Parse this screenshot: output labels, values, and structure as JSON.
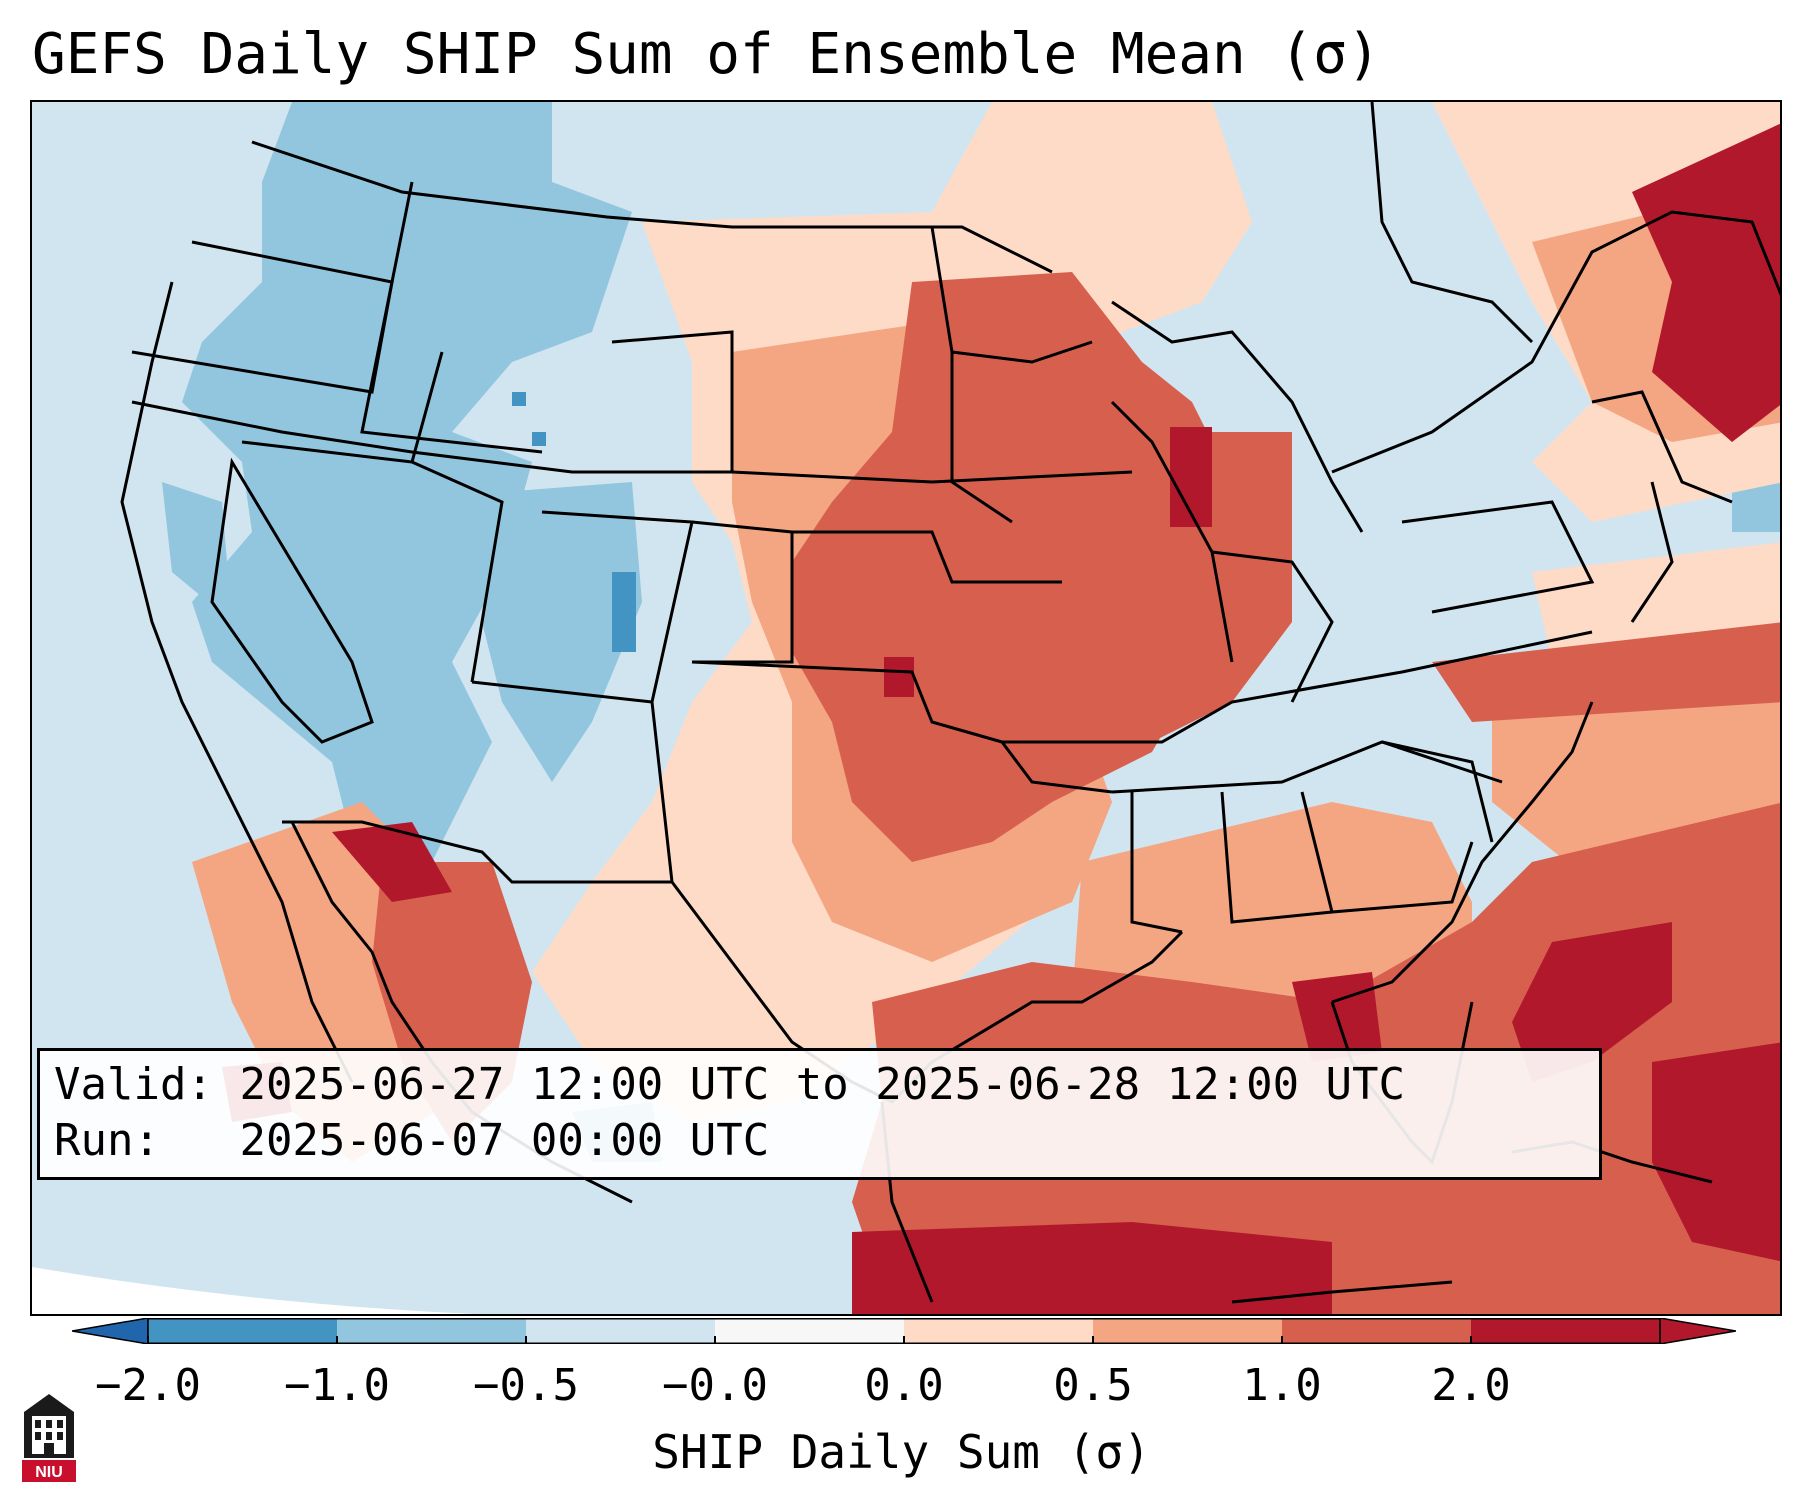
{
  "title": "GEFS Daily SHIP Sum of Ensemble Mean (σ)",
  "info": {
    "valid_label": "Valid:",
    "valid_value": "2025-06-27 12:00 UTC to 2025-06-28 12:00 UTC",
    "run_label": "Run:",
    "run_value": "2025-06-07 00:00 UTC"
  },
  "colorbar": {
    "label": "SHIP Daily Sum (σ)",
    "ticks": [
      "−2.0",
      "−1.0",
      "−0.5",
      "−0.0",
      "0.0",
      "0.5",
      "1.0",
      "2.0"
    ],
    "colors": [
      "#4393c3",
      "#92c5de",
      "#d1e5f0",
      "#f7f7f7",
      "#fddbc7",
      "#f4a582",
      "#d6604d",
      "#b2182b"
    ],
    "extend_low_color": "#2166ac",
    "extend_high_color": "#b2182b"
  },
  "logo": {
    "text": "NIU",
    "icon": "niu-logo-icon"
  }
}
